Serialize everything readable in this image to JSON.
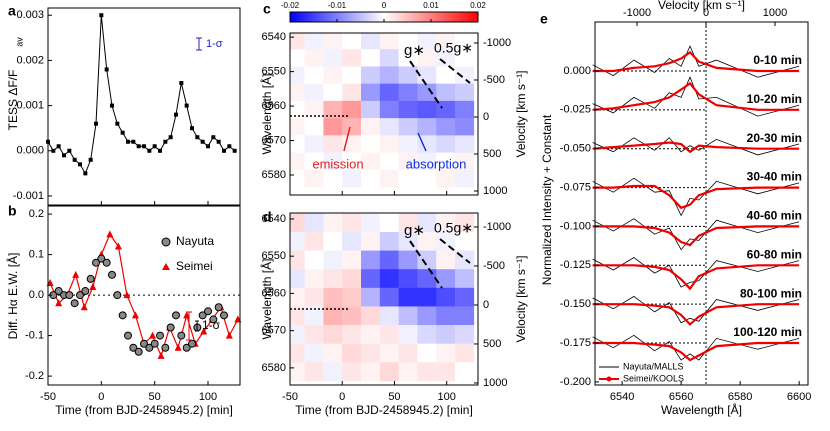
{
  "chart_data": [
    {
      "type": "scatter-line",
      "label": "a",
      "ylabel": "TESS ΔF/F",
      "ylabel_sub": "av",
      "annotation": "1-σ",
      "xlim": [
        -50,
        130
      ],
      "ylim": [
        -0.0012,
        0.00316
      ],
      "yticks": [
        0.003,
        0.002,
        0.001,
        {
          "value": 0,
          "label": "0.000"
        },
        -0.001
      ],
      "color": "#000000",
      "x": [
        -50,
        -45,
        -40,
        -35,
        -30,
        -25,
        -20,
        -15,
        -10,
        -5,
        0,
        5,
        10,
        15,
        20,
        25,
        30,
        35,
        40,
        45,
        50,
        55,
        60,
        65,
        70,
        75,
        80,
        85,
        90,
        95,
        100,
        105,
        110,
        115,
        120,
        125
      ],
      "values": [
        0.0002,
        0,
        0.0001,
        -0.0001,
        0,
        -0.0002,
        -0.0003,
        -0.0005,
        -0.0002,
        0.0006,
        0.003,
        0.0018,
        0.001,
        0.0006,
        0.0004,
        0.0002,
        0.0002,
        0.0001,
        0.0001,
        0,
        0.0001,
        0,
        0.0002,
        0.0003,
        0.0008,
        0.0015,
        0.001,
        0.0005,
        0.0003,
        0.0002,
        0.0001,
        0.0003,
        0.0002,
        0,
        0.0001,
        0
      ]
    },
    {
      "type": "scatter",
      "label": "b",
      "ylabel": "Diff. Hα E.W. [Å]",
      "xlabel": "Time (from BJD-2458945.2) [min]",
      "annotation": "1-σ",
      "xlim": [
        -50,
        130
      ],
      "ylim": [
        -0.222,
        0.22
      ],
      "xticks": [
        -50,
        0,
        50,
        100
      ],
      "yticks": [
        0.2,
        0.1,
        {
          "value": 0,
          "label": "0.0"
        },
        -0.1,
        -0.2
      ],
      "series": [
        {
          "name": "Nayuta",
          "color": "#888888",
          "x": [
            -45,
            -40,
            -35,
            -30,
            -25,
            -20,
            -15,
            -10,
            -5,
            0,
            5,
            10,
            15,
            20,
            25,
            30,
            35,
            40,
            45,
            50,
            55,
            60,
            65,
            70,
            75,
            80,
            85,
            90,
            95,
            100,
            105,
            110,
            115
          ],
          "values": [
            0,
            0.01,
            0,
            0,
            -0.02,
            0,
            0.01,
            0.04,
            0.08,
            0.09,
            0.08,
            0.05,
            0,
            -0.05,
            -0.1,
            -0.13,
            -0.14,
            -0.12,
            -0.13,
            -0.12,
            -0.1,
            -0.13,
            -0.08,
            -0.05,
            -0.1,
            -0.13,
            -0.12,
            -0.08,
            -0.05,
            -0.04,
            -0.06,
            -0.03,
            -0.05
          ]
        },
        {
          "name": "Seimei",
          "color": "#ee0000",
          "x": [
            -48,
            -40,
            -32,
            -24,
            -16,
            -8,
            0,
            8,
            16,
            24,
            32,
            40,
            48,
            56,
            64,
            72,
            80,
            88,
            96,
            104,
            112,
            120,
            128
          ],
          "values": [
            0.03,
            -0.02,
            0,
            0.05,
            -0.03,
            0.02,
            0.1,
            0.15,
            0.12,
            0,
            -0.05,
            -0.12,
            -0.1,
            -0.15,
            -0.08,
            -0.13,
            -0.05,
            -0.12,
            -0.09,
            -0.06,
            -0.03,
            -0.1,
            -0.06
          ]
        }
      ]
    },
    {
      "type": "heatmap",
      "label": "c",
      "ylabel": "Wavelength [Å]",
      "y2label": "Velocity [km s⁻¹]",
      "annotations": [
        "g∗",
        "0.5g∗",
        "emission",
        "absorption"
      ],
      "xlim": [
        -50,
        130
      ],
      "ylim": [
        6585.8,
        6538.8
      ],
      "y2lim": [
        1054,
        -1135
      ],
      "yticks": [
        6540,
        6550,
        6560,
        6570,
        6580
      ],
      "y2ticks": [
        -1000,
        -500,
        0,
        500,
        1000
      ],
      "clim": [
        -0.02,
        0.02
      ],
      "colorbar_ticks": [
        -0.02,
        -0.01,
        0,
        0.01,
        0.02
      ],
      "x": [
        -45,
        -27,
        -9,
        9,
        27,
        45,
        63,
        81,
        99,
        117
      ],
      "y": [
        6541,
        6546,
        6551,
        6556,
        6561,
        6566,
        6571,
        6576,
        6581
      ],
      "z": [
        [
          0.002,
          -0.001,
          0.001,
          0,
          -0.002,
          0.001,
          0,
          -0.001,
          0.001,
          0
        ],
        [
          0,
          0.001,
          -0.001,
          0.002,
          0,
          -0.003,
          0,
          0.001,
          -0.001,
          0
        ],
        [
          -0.001,
          0,
          0.001,
          0,
          -0.004,
          -0.006,
          -0.004,
          -0.002,
          0,
          -0.001
        ],
        [
          0.001,
          -0.001,
          0,
          0.002,
          -0.008,
          -0.012,
          -0.01,
          -0.008,
          -0.005,
          -0.004
        ],
        [
          0,
          0.001,
          0.006,
          0.008,
          -0.004,
          -0.01,
          -0.012,
          -0.013,
          -0.012,
          -0.01
        ],
        [
          0.001,
          0,
          0.008,
          0.006,
          0.001,
          -0.002,
          -0.004,
          -0.006,
          -0.008,
          -0.009
        ],
        [
          0,
          -0.001,
          0.002,
          0.001,
          0,
          0.001,
          -0.001,
          -0.002,
          -0.003,
          -0.002
        ],
        [
          0.001,
          0,
          -0.001,
          0,
          0.001,
          0,
          0.001,
          -0.001,
          0,
          0.001
        ],
        [
          0,
          0.001,
          0,
          -0.001,
          0,
          0.001,
          0,
          0,
          0.001,
          -0.001
        ]
      ]
    },
    {
      "type": "heatmap",
      "label": "d",
      "ylabel": "Wavelength [Å]",
      "y2label": "Velocity [km s⁻¹]",
      "xlabel": "Time (from BJD-2458945.2) [min]",
      "annotations": [
        "g∗",
        "0.5g∗"
      ],
      "xlim": [
        -50,
        130
      ],
      "ylim": [
        6584.6,
        6538.4
      ],
      "y2lim": [
        1026,
        -1179
      ],
      "xticks": [
        -50,
        0,
        50,
        100
      ],
      "yticks": [
        6540,
        6550,
        6560,
        6570,
        6580
      ],
      "y2ticks": [
        -1000,
        -500,
        0,
        500,
        1000
      ],
      "clim": [
        -0.02,
        0.02
      ],
      "x": [
        -45,
        -27,
        -9,
        9,
        27,
        45,
        63,
        81,
        99,
        117
      ],
      "y": [
        6541,
        6546,
        6551,
        6556,
        6561,
        6566,
        6571,
        6576,
        6581
      ],
      "z": [
        [
          0.003,
          -0.002,
          0.001,
          0.002,
          -0.001,
          0,
          0.002,
          -0.002,
          0.001,
          0.002
        ],
        [
          -0.001,
          0.002,
          0,
          -0.002,
          0.001,
          -0.004,
          -0.002,
          0.001,
          -0.001,
          0
        ],
        [
          0.002,
          0,
          -0.001,
          0.001,
          -0.008,
          -0.012,
          -0.008,
          -0.004,
          0.001,
          -0.002
        ],
        [
          -0.002,
          0.001,
          0.002,
          0.003,
          -0.012,
          -0.016,
          -0.014,
          -0.012,
          -0.008,
          -0.005
        ],
        [
          0.001,
          0.002,
          0.005,
          0.004,
          -0.006,
          -0.012,
          -0.016,
          -0.016,
          -0.014,
          -0.012
        ],
        [
          0.002,
          -0.001,
          0.006,
          0.005,
          0.003,
          -0.002,
          -0.005,
          -0.008,
          -0.01,
          -0.01
        ],
        [
          -0.001,
          0.002,
          0.003,
          0.002,
          0.001,
          0.002,
          -0.001,
          -0.003,
          -0.004,
          -0.003
        ],
        [
          0.002,
          -0.001,
          0.001,
          0.003,
          0.002,
          0.001,
          0.002,
          0,
          0.001,
          0.002
        ],
        [
          0.001,
          0.002,
          -0.001,
          0.002,
          0.001,
          0.003,
          0.001,
          0.002,
          0.002,
          0
        ]
      ]
    },
    {
      "type": "spectra",
      "label": "e",
      "ylabel": "Normalized Intensity + Constant",
      "xlabel": "Wavelength [Å]",
      "x2label": "Velocity [km s⁻¹]",
      "xlim": [
        6530.8,
        6603
      ],
      "x2lim": [
        -1609,
        1478
      ],
      "ylim": [
        -0.202,
        0.0315
      ],
      "xticks": [
        6540,
        6560,
        6580,
        6600
      ],
      "x2ticks": [
        -1000,
        0,
        1000
      ],
      "yticks": [
        {
          "value": 0,
          "label": "0.000"
        },
        -0.025,
        {
          "value": -0.05,
          "label": "-0.050"
        },
        -0.075,
        {
          "value": -0.1,
          "label": "-0.100"
        },
        -0.125,
        {
          "value": -0.15,
          "label": "-0.150"
        },
        -0.175,
        {
          "value": -0.2,
          "label": "-0.200"
        }
      ],
      "legend": [
        {
          "name": "Nayuta/MALLS",
          "color": "#000000"
        },
        {
          "name": "Seimei/KOOLS",
          "color": "#ee0000"
        }
      ],
      "x": [
        6530,
        6537,
        6544,
        6551,
        6556,
        6560,
        6563,
        6566,
        6572,
        6586,
        6600
      ],
      "spectra": [
        {
          "label": "0-10 min",
          "nayuta": [
            0.004,
            -0.003,
            0.007,
            -0.001,
            0.008,
            0.003,
            0.016,
            0.003,
            0.007,
            -0.004,
            0.003
          ],
          "seimei": [
            0,
            0,
            0.002,
            0.003,
            0.005,
            0.008,
            0.012,
            0.006,
            0.002,
            0,
            0
          ]
        },
        {
          "label": "10-20 min",
          "nayuta": [
            -0.021,
            -0.027,
            -0.017,
            -0.024,
            -0.014,
            -0.017,
            -0.004,
            -0.018,
            -0.017,
            -0.029,
            -0.022
          ],
          "seimei": [
            -0.025,
            -0.024,
            -0.022,
            -0.02,
            -0.017,
            -0.012,
            -0.008,
            -0.015,
            -0.022,
            -0.025,
            -0.025
          ]
        },
        {
          "label": "20-30 min",
          "nayuta": [
            -0.046,
            -0.052,
            -0.043,
            -0.051,
            -0.043,
            -0.052,
            -0.048,
            -0.051,
            -0.044,
            -0.054,
            -0.047
          ],
          "seimei": [
            -0.05,
            -0.049,
            -0.048,
            -0.047,
            -0.046,
            -0.047,
            -0.052,
            -0.048,
            -0.049,
            -0.05,
            -0.05
          ]
        },
        {
          "label": "30-40 min",
          "nayuta": [
            -0.071,
            -0.078,
            -0.069,
            -0.078,
            -0.077,
            -0.093,
            -0.082,
            -0.083,
            -0.071,
            -0.079,
            -0.072
          ],
          "seimei": [
            -0.075,
            -0.075,
            -0.074,
            -0.074,
            -0.08,
            -0.088,
            -0.086,
            -0.08,
            -0.076,
            -0.075,
            -0.075
          ]
        },
        {
          "label": "40-60 min",
          "nayuta": [
            -0.096,
            -0.103,
            -0.095,
            -0.105,
            -0.101,
            -0.115,
            -0.108,
            -0.109,
            -0.096,
            -0.104,
            -0.097
          ],
          "seimei": [
            -0.1,
            -0.1,
            -0.1,
            -0.101,
            -0.104,
            -0.11,
            -0.112,
            -0.106,
            -0.101,
            -0.1,
            -0.1
          ]
        },
        {
          "label": "60-80 min",
          "nayuta": [
            -0.121,
            -0.128,
            -0.12,
            -0.13,
            -0.125,
            -0.139,
            -0.136,
            -0.135,
            -0.122,
            -0.129,
            -0.122
          ],
          "seimei": [
            -0.125,
            -0.125,
            -0.125,
            -0.126,
            -0.128,
            -0.134,
            -0.14,
            -0.132,
            -0.127,
            -0.125,
            -0.125
          ]
        },
        {
          "label": "80-100 min",
          "nayuta": [
            -0.146,
            -0.153,
            -0.145,
            -0.155,
            -0.149,
            -0.162,
            -0.159,
            -0.161,
            -0.147,
            -0.154,
            -0.147
          ],
          "seimei": [
            -0.15,
            -0.15,
            -0.15,
            -0.151,
            -0.152,
            -0.157,
            -0.163,
            -0.158,
            -0.152,
            -0.15,
            -0.15
          ]
        },
        {
          "label": "100-120 min",
          "nayuta": [
            -0.171,
            -0.178,
            -0.17,
            -0.18,
            -0.174,
            -0.186,
            -0.182,
            -0.186,
            -0.172,
            -0.179,
            -0.172
          ],
          "seimei": [
            -0.175,
            -0.175,
            -0.175,
            -0.176,
            -0.177,
            -0.181,
            -0.186,
            -0.183,
            -0.177,
            -0.175,
            -0.175
          ]
        }
      ]
    }
  ]
}
